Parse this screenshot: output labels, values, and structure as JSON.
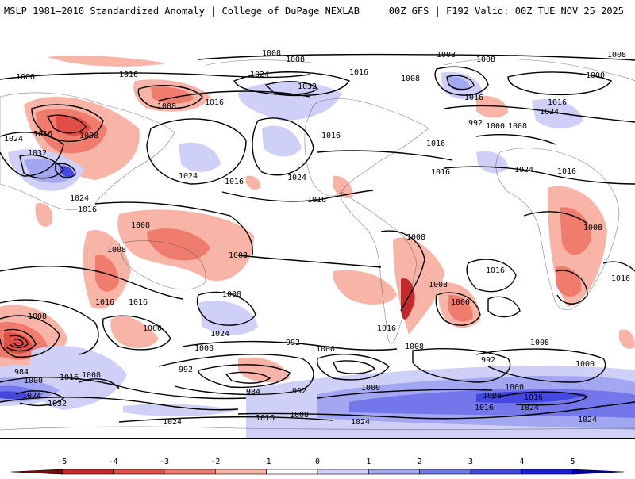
{
  "header": {
    "left_title": "MSLP 1981–2010 Standardized Anomaly | College of DuPage NEXLAB",
    "right_title": "00Z GFS | F192 Valid: 00Z TUE NOV 25 2025"
  },
  "colorbar": {
    "ticks": [
      "-5",
      "-4",
      "-3",
      "-2",
      "-1",
      "0",
      "1",
      "2",
      "3",
      "4",
      "5"
    ],
    "colors": [
      "#7a0a0a",
      "#c4282a",
      "#e04e46",
      "#f07c6e",
      "#f8b4a6",
      "#ffffff",
      "#cfd0f7",
      "#a3a6f1",
      "#7377ea",
      "#4448e0",
      "#1a1ed6",
      "#0000a8"
    ]
  },
  "isobar_labels": [
    "1008",
    "1008",
    "1008",
    "1008",
    "1008",
    "1016",
    "1024",
    "1032",
    "1016",
    "1008",
    "1000",
    "1008",
    "1016",
    "1016",
    "1008",
    "992",
    "1000",
    "1008",
    "1016",
    "1024",
    "1024",
    "1016",
    "1008",
    "1032",
    "1016",
    "1024",
    "1016",
    "1024",
    "1016",
    "1024",
    "1016",
    "1016",
    "1016",
    "1024",
    "1016",
    "1008",
    "1008",
    "1008",
    "1008",
    "1016",
    "1008",
    "1016",
    "1016",
    "1008",
    "1016",
    "1008",
    "1000",
    "1000",
    "1008",
    "1016",
    "1024",
    "1008",
    "992",
    "1000",
    "1008",
    "992",
    "984",
    "1000",
    "1016",
    "1008",
    "992",
    "984",
    "992",
    "1000",
    "1008",
    "1000",
    "1000",
    "1008",
    "1024",
    "1032",
    "1016",
    "1024",
    "1024",
    "1016",
    "1008",
    "1024",
    "1024",
    "1016"
  ]
}
